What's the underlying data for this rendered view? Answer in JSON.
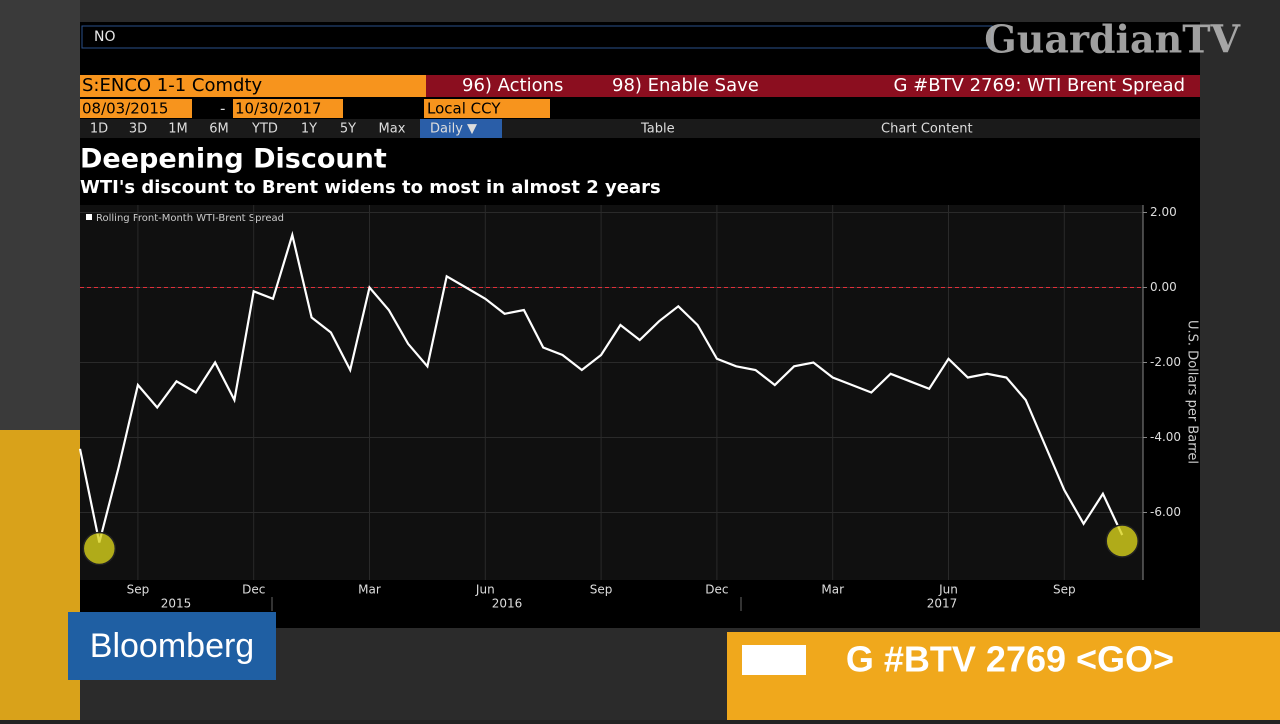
{
  "terminal": {
    "command": "NO",
    "security": "S:ENCO 1-1 Comdty",
    "actions": "96) Actions",
    "enable_save": "98) Enable Save",
    "page_title": "G #BTV 2769: WTI Brent Spread",
    "start_date": "08/03/2015",
    "date_dash": "-",
    "end_date": "10/30/2017",
    "currency": "Local CCY",
    "periods": [
      "1D",
      "3D",
      "1M",
      "6M",
      "YTD",
      "1Y",
      "5Y",
      "Max"
    ],
    "frequency": "Daily ▼",
    "table": "Table",
    "chart_content": "Chart Content"
  },
  "broadcast": {
    "channel": "GuardianTV",
    "network": "Bloomberg",
    "ticker": "G #BTV 2769 <GO>"
  },
  "chart_data": {
    "type": "line",
    "title": "Deepening Discount",
    "subtitle": "WTI's discount to Brent widens to most in almost 2 years",
    "y_label": "U.S. Dollars per Barrel",
    "categories": [
      null,
      null,
      null,
      "Sep",
      null,
      null,
      null,
      null,
      null,
      "Dec",
      null,
      null,
      null,
      null,
      null,
      "Mar",
      null,
      null,
      null,
      null,
      null,
      "Jun",
      null,
      null,
      null,
      null,
      null,
      "Sep",
      null,
      null,
      null,
      null,
      null,
      "Dec",
      null,
      null,
      null,
      null,
      null,
      "Mar",
      null,
      null,
      null,
      null,
      null,
      "Jun",
      null,
      null,
      null,
      null,
      null,
      "Sep",
      null,
      null,
      null
    ],
    "years": [
      "2015",
      "2016",
      "2017"
    ],
    "series": [
      {
        "name": "Rolling Front-Month WTI-Brent Spread",
        "color": "#ffffff",
        "values": [
          -4.3,
          -6.8,
          -4.8,
          -2.6,
          -3.2,
          -2.5,
          -2.8,
          -2.0,
          -3.0,
          -0.1,
          -0.3,
          1.4,
          -0.8,
          -1.2,
          -2.2,
          0.0,
          -0.6,
          -1.5,
          -2.1,
          0.3,
          0.0,
          -0.3,
          -0.7,
          -0.6,
          -1.6,
          -1.8,
          -2.2,
          -1.8,
          -1.0,
          -1.4,
          -0.9,
          -0.5,
          -1.0,
          -1.9,
          -2.1,
          -2.2,
          -2.6,
          -2.1,
          -2.0,
          -2.4,
          -2.6,
          -2.8,
          -2.3,
          -2.5,
          -2.7,
          -1.9,
          -2.4,
          -2.3,
          -2.4,
          -3.0,
          -4.2,
          -5.4,
          -6.3,
          -5.5,
          -6.6
        ]
      }
    ],
    "highlights": [
      1,
      54
    ],
    "highlight_color": "#d8d21c",
    "reference_line": 0,
    "reference_color": "#e0303a",
    "ylim": [
      -7.8,
      2.2
    ],
    "yticks": [
      {
        "value": 2,
        "label": "2.00"
      },
      {
        "value": 0,
        "label": "0.00"
      },
      {
        "value": -2,
        "label": "-2.00"
      },
      {
        "value": -4,
        "label": "-4.00"
      },
      {
        "value": -6,
        "label": "-6.00"
      }
    ],
    "grid": true
  }
}
